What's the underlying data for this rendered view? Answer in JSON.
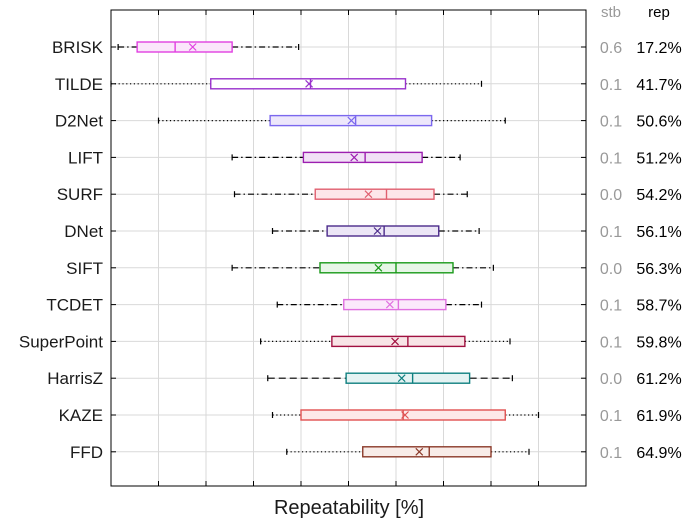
{
  "chart_data": {
    "type": "boxplot",
    "title": "",
    "xlabel": "Repeatability [%]",
    "ylabel": "",
    "xlim": [
      0,
      100
    ],
    "grid": true,
    "legend": "none",
    "column_headers": {
      "stb": "stb",
      "rep": "rep"
    },
    "series": [
      {
        "name": "BRISK",
        "color": "#e040e0",
        "fill": "#fbe6fb",
        "whisker_style": "dashdot",
        "min": 1.5,
        "q1": 5.5,
        "median": 13.5,
        "mean": 17.2,
        "q3": 25.5,
        "max": 39.5,
        "stb": "0.6",
        "rep": "17.2%"
      },
      {
        "name": "TILDE",
        "color": "#9932cc",
        "fill": "#ffffff",
        "whisker_style": "dotted",
        "min": 0.0,
        "q1": 21.0,
        "median": 42.0,
        "mean": 41.7,
        "q3": 62.0,
        "max": 78.0,
        "stb": "0.1",
        "rep": "41.7%"
      },
      {
        "name": "D2Net",
        "color": "#7b68ee",
        "fill": "#ede7fb",
        "whisker_style": "dotted",
        "min": 10.0,
        "q1": 33.5,
        "median": 51.5,
        "mean": 50.6,
        "q3": 67.5,
        "max": 83.0,
        "stb": "0.1",
        "rep": "50.6%"
      },
      {
        "name": "LIFT",
        "color": "#9c1fb0",
        "fill": "#f1e0f6",
        "whisker_style": "dashdot",
        "min": 25.5,
        "q1": 40.5,
        "median": 53.5,
        "mean": 51.2,
        "q3": 65.5,
        "max": 73.5,
        "stb": "0.1",
        "rep": "51.2%"
      },
      {
        "name": "SURF",
        "color": "#e06070",
        "fill": "#fde6e9",
        "whisker_style": "dashdot",
        "min": 26.0,
        "q1": 43.0,
        "median": 58.0,
        "mean": 54.2,
        "q3": 68.0,
        "max": 75.0,
        "stb": "0.0",
        "rep": "54.2%"
      },
      {
        "name": "DNet",
        "color": "#4b2a8a",
        "fill": "#ece6f6",
        "whisker_style": "dashdot",
        "min": 34.0,
        "q1": 45.5,
        "median": 57.5,
        "mean": 56.1,
        "q3": 69.0,
        "max": 77.5,
        "stb": "0.1",
        "rep": "56.1%"
      },
      {
        "name": "SIFT",
        "color": "#1a9a1a",
        "fill": "#e7f6e7",
        "whisker_style": "dashdot",
        "min": 25.5,
        "q1": 44.0,
        "median": 60.0,
        "mean": 56.3,
        "q3": 72.0,
        "max": 80.5,
        "stb": "0.0",
        "rep": "56.3%"
      },
      {
        "name": "TCDET",
        "color": "#e070e0",
        "fill": "#fbe9fb",
        "whisker_style": "dashdot",
        "min": 35.0,
        "q1": 49.0,
        "median": 60.5,
        "mean": 58.7,
        "q3": 70.5,
        "max": 78.0,
        "stb": "0.1",
        "rep": "58.7%"
      },
      {
        "name": "SuperPoint",
        "color": "#a01040",
        "fill": "#f8e4e6",
        "whisker_style": "dotted",
        "min": 31.5,
        "q1": 46.5,
        "median": 62.5,
        "mean": 59.8,
        "q3": 74.5,
        "max": 84.0,
        "stb": "0.1",
        "rep": "59.8%"
      },
      {
        "name": "HarrisZ",
        "color": "#108080",
        "fill": "#e5f3f3",
        "whisker_style": "dashed",
        "min": 33.0,
        "q1": 49.5,
        "median": 63.5,
        "mean": 61.2,
        "q3": 75.5,
        "max": 84.5,
        "stb": "0.0",
        "rep": "61.2%"
      },
      {
        "name": "KAZE",
        "color": "#e05050",
        "fill": "#fde8e8",
        "whisker_style": "dotted",
        "min": 34.0,
        "q1": 40.0,
        "median": 61.5,
        "mean": 61.9,
        "q3": 83.0,
        "max": 90.0,
        "stb": "0.1",
        "rep": "61.9%"
      },
      {
        "name": "FFD",
        "color": "#8b3a2a",
        "fill": "#f8ece8",
        "whisker_style": "dotted",
        "min": 37.0,
        "q1": 53.0,
        "median": 67.0,
        "mean": 64.9,
        "q3": 80.0,
        "max": 88.0,
        "stb": "0.1",
        "rep": "64.9%"
      }
    ]
  }
}
